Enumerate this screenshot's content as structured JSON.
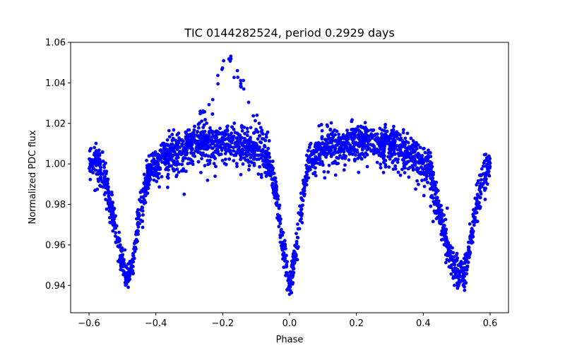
{
  "chart_data": {
    "type": "scatter",
    "title": "TIC 0144282524, period 0.2929 days",
    "xlabel": "Phase",
    "ylabel": "Normalized PDC flux",
    "xlim": [
      -0.655,
      0.655
    ],
    "ylim": [
      0.9265,
      1.06
    ],
    "xticks": [
      -0.6,
      -0.4,
      -0.2,
      0.0,
      0.2,
      0.4,
      0.6
    ],
    "xtick_labels": [
      "−0.6",
      "−0.4",
      "−0.2",
      "0.0",
      "0.2",
      "0.4",
      "0.6"
    ],
    "yticks": [
      0.94,
      0.96,
      0.98,
      1.0,
      1.02,
      1.04,
      1.06
    ],
    "ytick_labels": [
      "0.94",
      "0.96",
      "0.98",
      "1.00",
      "1.02",
      "1.04",
      "1.06"
    ],
    "grid": false,
    "marker_color": "#0000ff",
    "series": [
      {
        "phase_range": [
          -0.6,
          0.6
        ],
        "light_curve_profile": {
          "phase": [
            -0.6,
            -0.57,
            -0.55,
            -0.53,
            -0.51,
            -0.49,
            -0.48,
            -0.47,
            -0.45,
            -0.42,
            -0.38,
            -0.3,
            -0.2,
            -0.1,
            -0.06,
            -0.04,
            -0.02,
            0.0,
            0.02,
            0.04,
            0.06,
            0.1,
            0.2,
            0.3,
            0.38,
            0.42,
            0.45,
            0.47,
            0.49,
            0.51,
            0.52,
            0.53,
            0.55,
            0.57,
            0.6
          ],
          "flux": [
            1.002,
            1.0,
            0.99,
            0.975,
            0.958,
            0.946,
            0.945,
            0.952,
            0.975,
            0.998,
            1.004,
            1.01,
            1.012,
            1.008,
            1.002,
            0.985,
            0.958,
            0.94,
            0.958,
            0.985,
            1.002,
            1.008,
            1.012,
            1.01,
            1.004,
            0.998,
            0.975,
            0.962,
            0.95,
            0.945,
            0.946,
            0.952,
            0.97,
            0.99,
            1.002
          ]
        },
        "scatter": 0.004,
        "outlier_branch": {
          "phase": [
            -0.27,
            -0.24,
            -0.22,
            -0.2,
            -0.18,
            -0.16,
            -0.14,
            -0.12,
            -0.1,
            -0.08,
            -0.06
          ],
          "flux": [
            1.022,
            1.03,
            1.04,
            1.048,
            1.052,
            1.046,
            1.038,
            1.03,
            1.022,
            1.016,
            1.012
          ]
        }
      }
    ]
  }
}
